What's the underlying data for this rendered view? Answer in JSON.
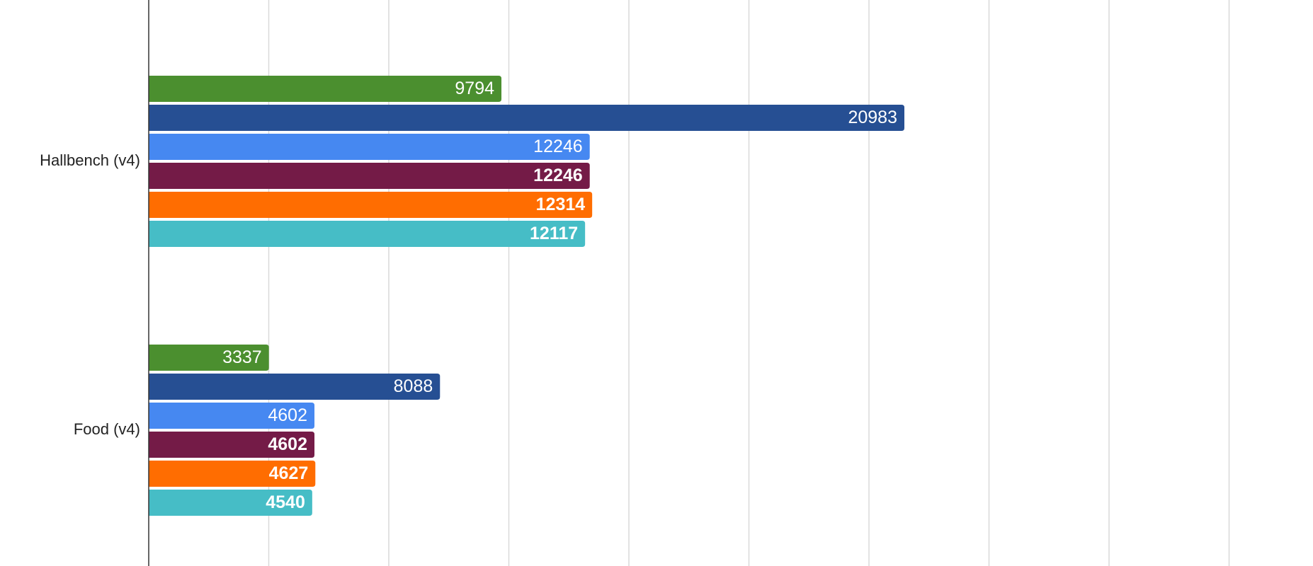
{
  "chart_data": {
    "type": "bar",
    "orientation": "horizontal",
    "categories": [
      "Hallbench (v4)",
      "Food (v4)"
    ],
    "series": [
      {
        "color": "#4b8f2f",
        "bold_labels": false,
        "values": [
          9794,
          3337
        ]
      },
      {
        "color": "#264f93",
        "bold_labels": false,
        "values": [
          20983,
          8088
        ]
      },
      {
        "color": "#4688f1",
        "bold_labels": false,
        "values": [
          12246,
          4602
        ]
      },
      {
        "color": "#741b47",
        "bold_labels": true,
        "values": [
          12246,
          4602
        ]
      },
      {
        "color": "#ff6d01",
        "bold_labels": true,
        "values": [
          12314,
          4627
        ]
      },
      {
        "color": "#46bdc6",
        "bold_labels": true,
        "values": [
          12117,
          4540
        ]
      }
    ],
    "xlim": [
      0,
      30000
    ],
    "grid_step": 3333.33,
    "grid": true,
    "data_labels": "inside-end"
  }
}
